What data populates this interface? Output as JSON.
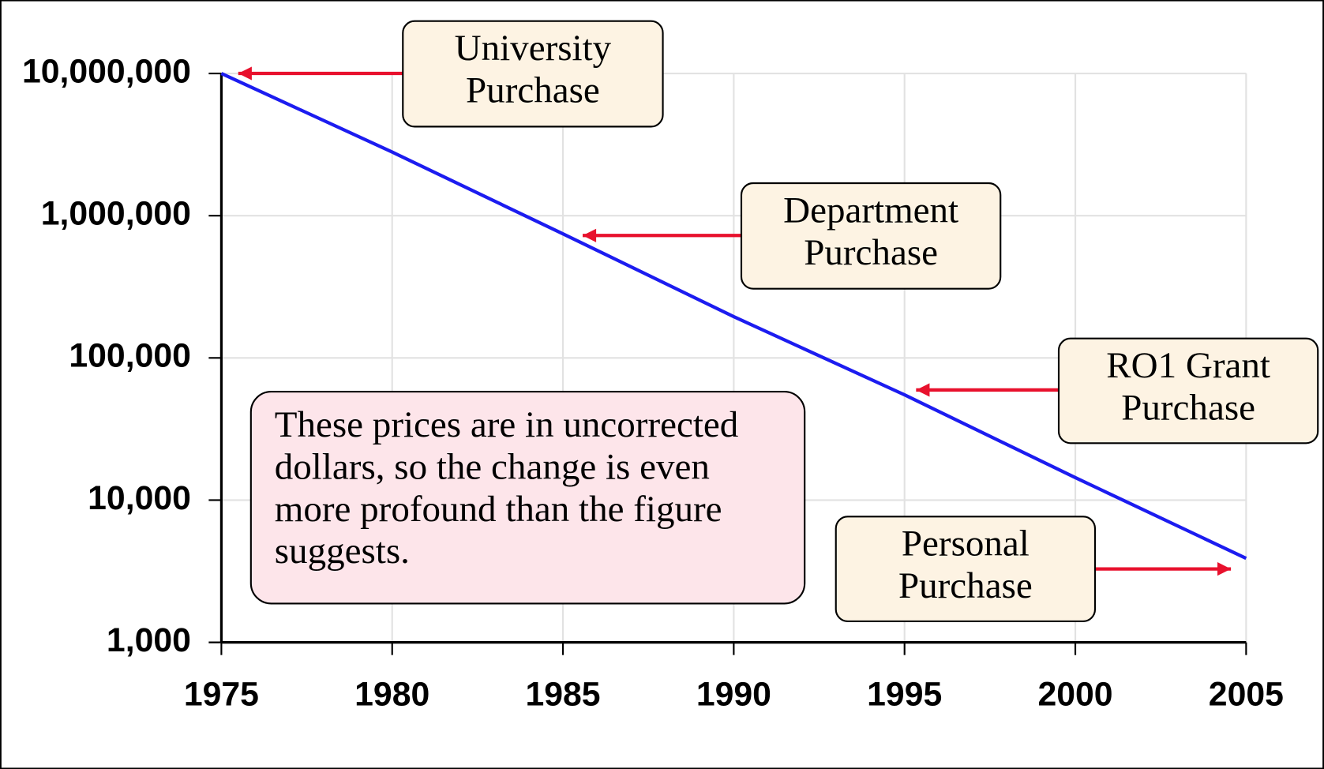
{
  "chart_data": {
    "type": "line",
    "x": [
      1975,
      1980,
      1985,
      1990,
      1995,
      2000,
      2005
    ],
    "values": [
      10000000,
      2800000,
      745000,
      195000,
      55000,
      14400,
      3900
    ],
    "color": "#1c1cf0",
    "log_scale": true,
    "grid": true,
    "xlim": [
      1975,
      2005
    ],
    "xticks": [
      1975,
      1980,
      1985,
      1990,
      1995,
      2000,
      2005
    ],
    "ylim": [
      1000,
      10000000
    ],
    "yticks": [
      {
        "value": 1000,
        "label": "1,000"
      },
      {
        "value": 10000,
        "label": "10,000"
      },
      {
        "value": 100000,
        "label": "100,000"
      },
      {
        "value": 1000000,
        "label": "1,000,000"
      },
      {
        "value": 10000000,
        "label": "10,000,000"
      }
    ],
    "annotations": [
      {
        "text": [
          "University",
          "Purchase"
        ]
      },
      {
        "text": [
          "Department",
          "Purchase"
        ]
      },
      {
        "text": [
          "RO1 Grant",
          "Purchase"
        ]
      },
      {
        "text": [
          "Personal",
          "Purchase"
        ]
      }
    ],
    "note": [
      "These prices are in uncorrected",
      "dollars, so the change is even",
      "more profound than the figure",
      "suggests."
    ]
  }
}
